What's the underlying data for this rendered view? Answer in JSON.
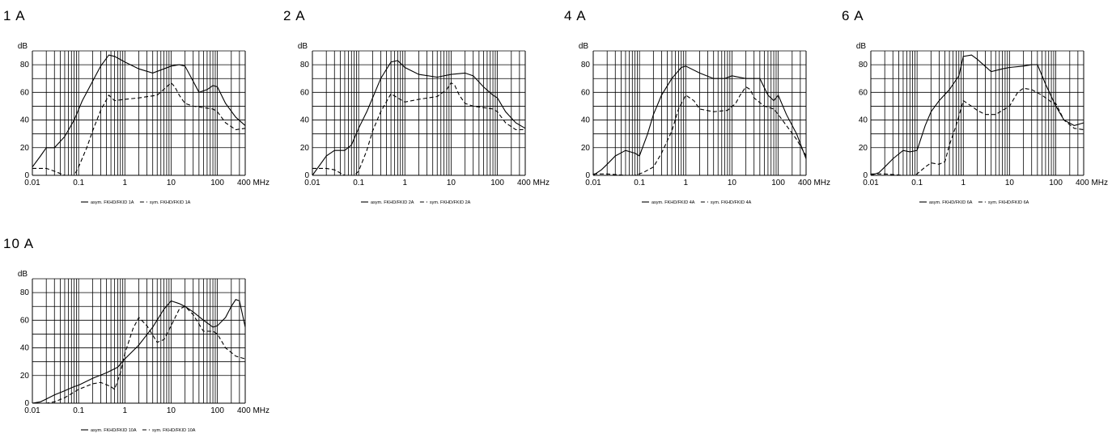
{
  "chart_data": [
    {
      "type": "line",
      "title": "1 A",
      "ylabel": "dB",
      "x_scale": "log",
      "x_unit": "MHz",
      "xlim": [
        0.01,
        400
      ],
      "ylim": [
        0,
        90
      ],
      "xticks": [
        {
          "v": 0.01,
          "label": "0.01"
        },
        {
          "v": 0.1,
          "label": "0.1"
        },
        {
          "v": 1,
          "label": "1"
        },
        {
          "v": 10,
          "label": "10"
        },
        {
          "v": 100,
          "label": "100"
        },
        {
          "v": 400,
          "label": "400 MHz"
        }
      ],
      "yticks": [
        0,
        20,
        40,
        60,
        80
      ],
      "series": [
        {
          "name": "asym. FKHD/FKID 1A",
          "style": "solid",
          "x": [
            0.01,
            0.015,
            0.02,
            0.03,
            0.05,
            0.08,
            0.12,
            0.2,
            0.3,
            0.45,
            0.6,
            1,
            2,
            4,
            7,
            10,
            15,
            20,
            30,
            40,
            60,
            80,
            100,
            150,
            250,
            400
          ],
          "y": [
            6,
            14,
            20,
            20,
            28,
            40,
            54,
            68,
            79,
            87,
            86,
            82,
            77,
            74,
            77,
            79,
            80,
            79,
            68,
            60,
            62,
            65,
            64,
            52,
            42,
            36
          ]
        },
        {
          "name": "sym. FKHD/FKID 1A",
          "style": "dashed",
          "x": [
            0.01,
            0.02,
            0.03,
            0.05,
            0.08,
            0.1,
            0.15,
            0.2,
            0.3,
            0.45,
            0.6,
            1,
            2,
            5,
            8,
            10,
            12,
            15,
            20,
            30,
            50,
            80,
            100,
            150,
            250,
            400
          ],
          "y": [
            5,
            5,
            3,
            0,
            0,
            6,
            20,
            32,
            47,
            58,
            54,
            55,
            56,
            58,
            64,
            67,
            64,
            58,
            52,
            50,
            49,
            48,
            46,
            38,
            33,
            34
          ]
        }
      ]
    },
    {
      "type": "line",
      "title": "2 A",
      "ylabel": "dB",
      "x_scale": "log",
      "x_unit": "MHz",
      "xlim": [
        0.01,
        400
      ],
      "ylim": [
        0,
        90
      ],
      "xticks": [
        {
          "v": 0.01,
          "label": "0.01"
        },
        {
          "v": 0.1,
          "label": "0.1"
        },
        {
          "v": 1,
          "label": "1"
        },
        {
          "v": 10,
          "label": "10"
        },
        {
          "v": 100,
          "label": "100"
        },
        {
          "v": 400,
          "label": "400 MHz"
        }
      ],
      "yticks": [
        0,
        20,
        40,
        60,
        80
      ],
      "series": [
        {
          "name": "asym. FKHD/FKID 2A",
          "style": "solid",
          "x": [
            0.01,
            0.02,
            0.03,
            0.05,
            0.07,
            0.1,
            0.15,
            0.2,
            0.3,
            0.5,
            0.7,
            1,
            2,
            5,
            10,
            20,
            30,
            50,
            80,
            100,
            150,
            250,
            400
          ],
          "y": [
            0,
            14,
            18,
            18,
            22,
            34,
            46,
            56,
            70,
            82,
            83,
            78,
            73,
            71,
            73,
            74,
            72,
            64,
            58,
            56,
            46,
            38,
            34
          ]
        },
        {
          "name": "sym. FKHD/FKID 2A",
          "style": "dashed",
          "x": [
            0.01,
            0.02,
            0.03,
            0.05,
            0.08,
            0.1,
            0.15,
            0.2,
            0.3,
            0.5,
            0.7,
            1,
            2,
            5,
            8,
            10,
            12,
            15,
            20,
            30,
            50,
            80,
            100,
            150,
            250,
            400
          ],
          "y": [
            5,
            5,
            4,
            0,
            0,
            3,
            18,
            32,
            46,
            59,
            56,
            53,
            55,
            57,
            62,
            67,
            65,
            58,
            52,
            50,
            49,
            48,
            46,
            38,
            33,
            33
          ]
        }
      ]
    },
    {
      "type": "line",
      "title": "4 A",
      "ylabel": "dB",
      "x_scale": "log",
      "x_unit": "MHz",
      "xlim": [
        0.01,
        400
      ],
      "ylim": [
        0,
        90
      ],
      "xticks": [
        {
          "v": 0.01,
          "label": "0.01"
        },
        {
          "v": 0.1,
          "label": "0.1"
        },
        {
          "v": 1,
          "label": "1"
        },
        {
          "v": 10,
          "label": "10"
        },
        {
          "v": 100,
          "label": "100"
        },
        {
          "v": 400,
          "label": "400 MHz"
        }
      ],
      "yticks": [
        0,
        20,
        40,
        60,
        80
      ],
      "series": [
        {
          "name": "asym. FKHD/FKID 4A",
          "style": "solid",
          "x": [
            0.01,
            0.015,
            0.02,
            0.03,
            0.05,
            0.08,
            0.1,
            0.15,
            0.2,
            0.3,
            0.5,
            0.8,
            1,
            2,
            4,
            7,
            10,
            20,
            40,
            60,
            80,
            100,
            150,
            250,
            400
          ],
          "y": [
            0,
            4,
            8,
            14,
            18,
            16,
            14,
            30,
            44,
            58,
            70,
            78,
            79,
            74,
            70,
            70,
            72,
            70,
            70,
            58,
            54,
            58,
            44,
            30,
            12
          ]
        },
        {
          "name": "sym. FKHD/FKID 4A",
          "style": "dashed",
          "x": [
            0.01,
            0.02,
            0.05,
            0.08,
            0.12,
            0.2,
            0.3,
            0.5,
            0.7,
            1,
            1.5,
            2,
            4,
            8,
            12,
            15,
            20,
            25,
            30,
            50,
            80,
            100,
            150,
            250,
            400
          ],
          "y": [
            1,
            1,
            0,
            0,
            2,
            6,
            16,
            32,
            48,
            58,
            54,
            48,
            46,
            47,
            52,
            58,
            64,
            62,
            56,
            50,
            48,
            44,
            36,
            26,
            14
          ]
        }
      ]
    },
    {
      "type": "line",
      "title": "6 A",
      "ylabel": "dB",
      "x_scale": "log",
      "x_unit": "MHz",
      "xlim": [
        0.01,
        400
      ],
      "ylim": [
        0,
        90
      ],
      "xticks": [
        {
          "v": 0.01,
          "label": "0.01"
        },
        {
          "v": 0.1,
          "label": "0.1"
        },
        {
          "v": 1,
          "label": "1"
        },
        {
          "v": 10,
          "label": "10"
        },
        {
          "v": 100,
          "label": "100"
        },
        {
          "v": 400,
          "label": "400 MHz"
        }
      ],
      "yticks": [
        0,
        20,
        40,
        60,
        80
      ],
      "series": [
        {
          "name": "asym. FKHD/FKID 6A",
          "style": "solid",
          "x": [
            0.01,
            0.015,
            0.02,
            0.03,
            0.05,
            0.07,
            0.1,
            0.15,
            0.2,
            0.3,
            0.5,
            0.8,
            1,
            1.5,
            2,
            4,
            7,
            10,
            20,
            30,
            40,
            60,
            100,
            150,
            250,
            400
          ],
          "y": [
            0,
            2,
            6,
            12,
            18,
            17,
            18,
            36,
            46,
            54,
            62,
            72,
            86,
            87,
            84,
            75,
            77,
            78,
            79,
            80,
            80,
            66,
            50,
            40,
            36,
            38
          ]
        },
        {
          "name": "sym. FKHD/FKID 6A",
          "style": "dashed",
          "x": [
            0.01,
            0.02,
            0.05,
            0.08,
            0.1,
            0.15,
            0.2,
            0.3,
            0.4,
            0.5,
            0.7,
            1,
            1.5,
            2,
            3,
            5,
            10,
            15,
            20,
            30,
            50,
            80,
            100,
            150,
            250,
            400
          ],
          "y": [
            1,
            1,
            0,
            0,
            1,
            6,
            9,
            8,
            10,
            22,
            36,
            54,
            50,
            47,
            44,
            44,
            50,
            60,
            63,
            62,
            58,
            53,
            52,
            40,
            34,
            33
          ]
        }
      ]
    },
    {
      "type": "line",
      "title": "10 A",
      "ylabel": "dB",
      "x_scale": "log",
      "x_unit": "MHz",
      "xlim": [
        0.01,
        400
      ],
      "ylim": [
        0,
        90
      ],
      "xticks": [
        {
          "v": 0.01,
          "label": "0.01"
        },
        {
          "v": 0.1,
          "label": "0.1"
        },
        {
          "v": 1,
          "label": "1"
        },
        {
          "v": 10,
          "label": "10"
        },
        {
          "v": 100,
          "label": "100"
        },
        {
          "v": 400,
          "label": "400 MHz"
        }
      ],
      "yticks": [
        0,
        20,
        40,
        60,
        80
      ],
      "series": [
        {
          "name": "asym. FKHD/FKID 10A",
          "style": "solid",
          "x": [
            0.01,
            0.015,
            0.02,
            0.03,
            0.05,
            0.08,
            0.1,
            0.2,
            0.4,
            0.7,
            1,
            2,
            4,
            7,
            10,
            15,
            20,
            30,
            50,
            80,
            100,
            150,
            200,
            250,
            300,
            400
          ],
          "y": [
            0,
            1,
            3,
            6,
            9,
            12,
            13,
            18,
            22,
            26,
            32,
            42,
            55,
            68,
            74,
            72,
            70,
            66,
            60,
            55,
            56,
            62,
            70,
            75,
            74,
            55
          ]
        },
        {
          "name": "sym. FKHD/FKID 10A",
          "style": "dashed",
          "x": [
            0.01,
            0.02,
            0.03,
            0.05,
            0.08,
            0.1,
            0.2,
            0.3,
            0.5,
            0.6,
            0.8,
            1,
            1.5,
            2,
            3,
            5,
            7,
            10,
            15,
            20,
            30,
            50,
            80,
            100,
            150,
            250,
            400
          ],
          "y": [
            0,
            0,
            1,
            4,
            8,
            10,
            14,
            15,
            12,
            10,
            22,
            36,
            54,
            62,
            56,
            44,
            46,
            56,
            68,
            70,
            64,
            52,
            52,
            50,
            40,
            34,
            32
          ]
        }
      ]
    }
  ]
}
